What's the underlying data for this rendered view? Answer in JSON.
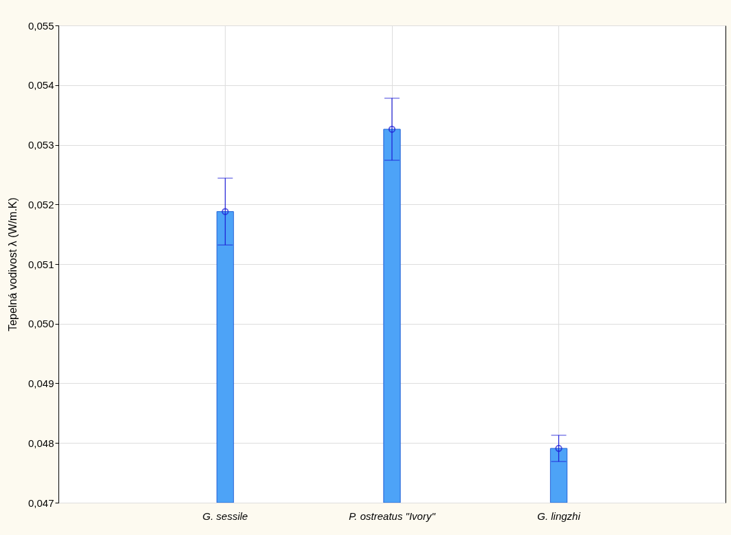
{
  "chart_data": {
    "type": "bar",
    "ylabel": "Tepelná vodivost λ (W/m.K)",
    "categories": [
      "G. sessile",
      "P. ostreatus \"Ivory\"",
      "G. lingzhi"
    ],
    "series": [
      {
        "color": "#4da3f7",
        "values": [
          0.05188,
          0.05326,
          0.04791
        ],
        "errors": [
          0.00056,
          0.00052,
          0.00022
        ]
      },
      {
        "type": "scatter",
        "color": "#1c1cd6",
        "x": [
          "G. sessile",
          "P. ostreatus \"Ivory\"",
          "G. lingzhi"
        ],
        "values": [
          0.05188,
          0.05326,
          0.04791
        ]
      }
    ],
    "ylim": [
      0.047,
      0.055
    ],
    "yticks": [
      {
        "value": 0.047,
        "label": "0,047"
      },
      {
        "value": 0.048,
        "label": "0,048"
      },
      {
        "value": 0.049,
        "label": "0,049"
      },
      {
        "value": 0.05,
        "label": "0,050"
      },
      {
        "value": 0.051,
        "label": "0,051"
      },
      {
        "value": 0.052,
        "label": "0,052"
      },
      {
        "value": 0.053,
        "label": "0,053"
      },
      {
        "value": 0.054,
        "label": "0,054"
      },
      {
        "value": 0.055,
        "label": "0,055"
      }
    ],
    "grid": true,
    "marker": "circle"
  }
}
